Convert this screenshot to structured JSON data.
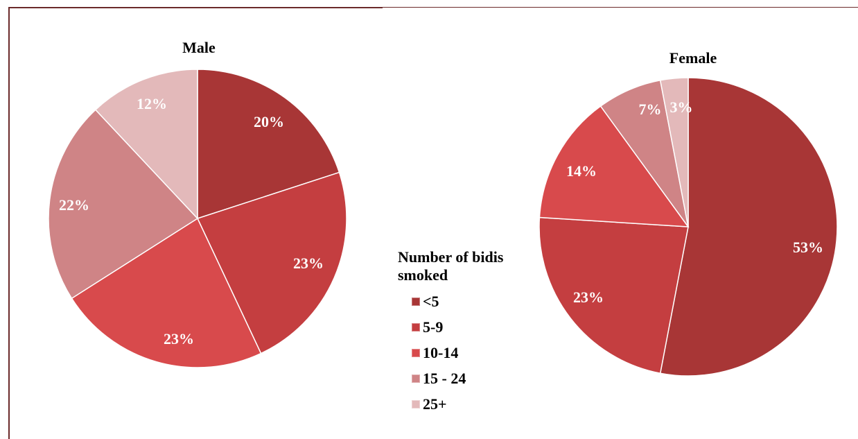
{
  "chart_data": [
    {
      "type": "pie",
      "title": "Male",
      "categories": [
        "<5",
        "5-9",
        "10-14",
        "15 - 24",
        "25+"
      ],
      "values": [
        20,
        23,
        23,
        22,
        12
      ],
      "labels": [
        "20%",
        "23%",
        "23%",
        "22%",
        "12%"
      ],
      "unit": "%"
    },
    {
      "type": "pie",
      "title": "Female",
      "categories": [
        "<5",
        "5-9",
        "10-14",
        "15 - 24",
        "25+"
      ],
      "values": [
        53,
        23,
        14,
        7,
        3
      ],
      "labels": [
        "53%",
        "23%",
        "14%",
        "7%",
        "3%"
      ],
      "unit": "%"
    }
  ],
  "legend": {
    "title": "Number of bidis smoked",
    "items": [
      "<5",
      "5-9",
      "10-14",
      "15 - 24",
      "25+"
    ],
    "colors": [
      "#a83636",
      "#c43e40",
      "#d84a4c",
      "#cf8486",
      "#e3b9ba"
    ]
  }
}
